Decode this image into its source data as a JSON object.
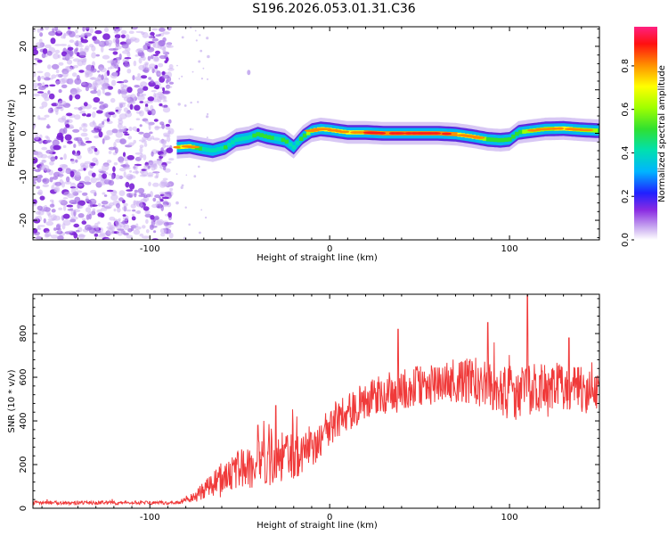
{
  "title": "S196.2026.053.01.31.C36",
  "chart_data": [
    {
      "type": "heatmap",
      "xlabel": "Height of straight line (km)",
      "ylabel": "Frequency (Hz)",
      "xlim": [
        -165,
        150
      ],
      "ylim": [
        -24.5,
        24.5
      ],
      "xticks": [
        -100,
        0,
        100
      ],
      "yticks": [
        -20,
        -10,
        0,
        10,
        20
      ],
      "noise_region_x": [
        -165,
        -85
      ],
      "ridge": {
        "x": [
          -85,
          -78,
          -72,
          -65,
          -58,
          -52,
          -45,
          -40,
          -35,
          -30,
          -25,
          -20,
          -15,
          -10,
          -5,
          0,
          10,
          20,
          30,
          40,
          50,
          60,
          70,
          80,
          88,
          95,
          100,
          105,
          110,
          120,
          130,
          140,
          150
        ],
        "y": [
          -3.2,
          -3.0,
          -3.5,
          -4.0,
          -3.2,
          -1.5,
          -1.0,
          -0.2,
          -0.8,
          -1.2,
          -1.6,
          -3.2,
          -0.8,
          0.6,
          1.0,
          0.8,
          0.2,
          0.2,
          0.0,
          0.0,
          0.0,
          0.0,
          -0.2,
          -0.8,
          -1.4,
          -1.6,
          -1.4,
          0.2,
          0.5,
          1.0,
          1.1,
          0.8,
          0.6
        ],
        "amplitude": [
          0.75,
          0.85,
          0.55,
          0.45,
          0.55,
          0.45,
          0.5,
          0.55,
          0.6,
          0.5,
          0.55,
          0.45,
          0.6,
          0.75,
          0.85,
          0.8,
          0.85,
          0.9,
          0.95,
          0.95,
          0.95,
          0.95,
          0.9,
          0.85,
          0.65,
          0.6,
          0.55,
          0.6,
          0.7,
          0.75,
          0.8,
          0.75,
          0.65
        ]
      },
      "colorbar": {
        "label": "Normalized spectral amplitude",
        "ticks": [
          "0.0",
          "0.2",
          "0.4",
          "0.6",
          "0.8"
        ],
        "tick_values": [
          0.0,
          0.2,
          0.4,
          0.6,
          0.8
        ],
        "range": [
          0,
          0.98
        ]
      }
    },
    {
      "type": "line",
      "xlabel": "Height of straight line (km)",
      "ylabel": "SNR (10 * v/v)",
      "xlim": [
        -165,
        150
      ],
      "ylim": [
        0,
        980
      ],
      "xticks": [
        -100,
        0,
        100
      ],
      "yticks": [
        0,
        200,
        400,
        600,
        800
      ],
      "color": "#f03a3a",
      "envelope": {
        "x": [
          -165,
          -120,
          -85,
          -78,
          -70,
          -60,
          -50,
          -40,
          -30,
          -20,
          -10,
          0,
          10,
          20,
          30,
          40,
          50,
          60,
          70,
          80,
          90,
          100,
          110,
          120,
          130,
          140,
          150
        ],
        "y": [
          25,
          25,
          25,
          40,
          80,
          140,
          180,
          200,
          230,
          240,
          280,
          380,
          440,
          490,
          520,
          540,
          560,
          570,
          580,
          585,
          560,
          520,
          540,
          560,
          560,
          540,
          520
        ]
      },
      "noise_amplitude": {
        "x": [
          -165,
          -85,
          -80,
          -70,
          -60,
          -50,
          -40,
          -30,
          -20,
          -10,
          0,
          20,
          40,
          60,
          80,
          100,
          120,
          150
        ],
        "y": [
          8,
          8,
          15,
          40,
          70,
          90,
          110,
          120,
          110,
          100,
          90,
          90,
          100,
          90,
          110,
          120,
          110,
          100
        ]
      },
      "peaks": [
        {
          "x": -40,
          "y": 380
        },
        {
          "x": -30,
          "y": 470
        },
        {
          "x": 38,
          "y": 820
        },
        {
          "x": 88,
          "y": 850
        },
        {
          "x": 110,
          "y": 975
        },
        {
          "x": 133,
          "y": 780
        }
      ]
    }
  ]
}
